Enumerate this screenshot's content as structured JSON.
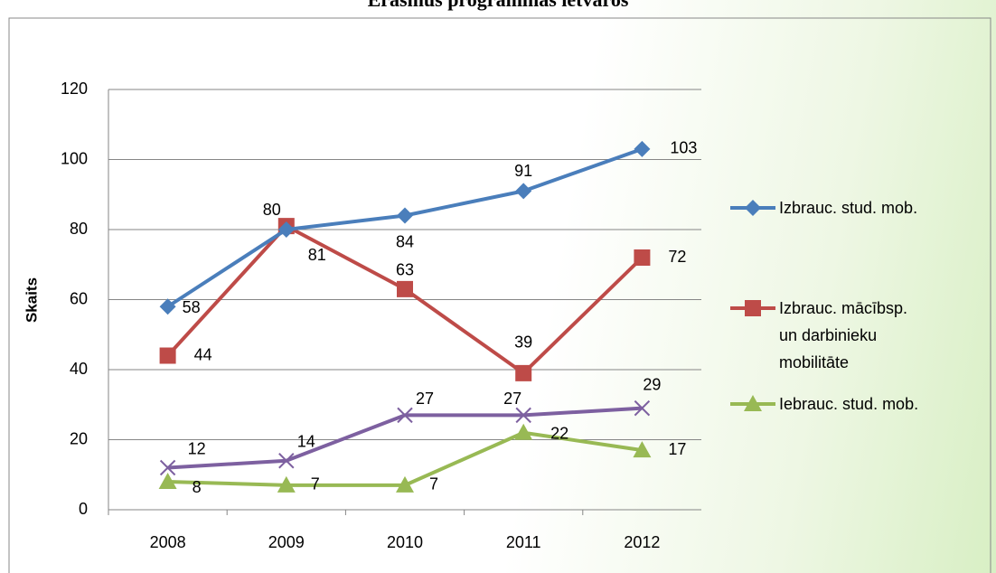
{
  "chart_data": {
    "type": "line",
    "title": "Erasmus programmas ietvaros",
    "y_label": "Skaits",
    "categories": [
      "2008",
      "2009",
      "2010",
      "2011",
      "2012"
    ],
    "series": [
      {
        "name": "Izbrauc. stud. mob.",
        "color": "#4a7ebb",
        "marker": "diamond",
        "values": [
          58,
          80,
          84,
          91,
          103
        ]
      },
      {
        "name": "Izbrauc. mācībsp. un darbinieku mobilitāte",
        "color": "#be4b48",
        "marker": "square",
        "values": [
          44,
          81,
          63,
          39,
          72
        ]
      },
      {
        "name": "Iebrauc. stud. mob.",
        "color": "#98b954",
        "marker": "triangle",
        "values": [
          8,
          7,
          7,
          22,
          17
        ]
      },
      {
        "color": "#7d60a0",
        "marker": "x",
        "values": [
          12,
          14,
          27,
          27,
          29
        ]
      }
    ],
    "ylim": [
      0,
      120
    ],
    "yticks": [
      0,
      20,
      40,
      60,
      80,
      100,
      120
    ],
    "grid": true
  }
}
